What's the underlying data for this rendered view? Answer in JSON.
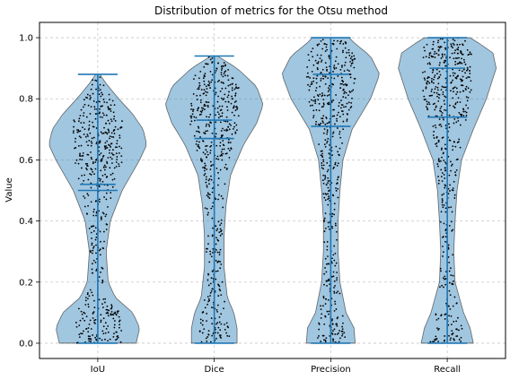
{
  "chart_data": {
    "type": "violin",
    "title": "Distribution of metrics for the Otsu method",
    "xlabel": "",
    "ylabel": "Value",
    "categories": [
      "IoU",
      "Dice",
      "Precision",
      "Recall"
    ],
    "ylim": [
      -0.05,
      1.05
    ],
    "yticks": [
      "0.0",
      "0.2",
      "0.4",
      "0.6",
      "0.8",
      "1.0"
    ],
    "grid": true,
    "colors": {
      "violin": "#1f77b4",
      "stats": "#1f77b4",
      "points": "#000000"
    },
    "series": [
      {
        "category": "IoU",
        "min": 0.0,
        "max": 0.88,
        "mean": 0.5,
        "median": 0.52,
        "density": [
          [
            0.0,
            0.55
          ],
          [
            0.05,
            0.6
          ],
          [
            0.1,
            0.5
          ],
          [
            0.15,
            0.25
          ],
          [
            0.2,
            0.15
          ],
          [
            0.3,
            0.12
          ],
          [
            0.4,
            0.18
          ],
          [
            0.5,
            0.35
          ],
          [
            0.6,
            0.6
          ],
          [
            0.65,
            0.7
          ],
          [
            0.7,
            0.65
          ],
          [
            0.75,
            0.5
          ],
          [
            0.8,
            0.3
          ],
          [
            0.85,
            0.12
          ],
          [
            0.88,
            0.03
          ]
        ]
      },
      {
        "category": "Dice",
        "min": 0.0,
        "max": 0.94,
        "mean": 0.67,
        "median": 0.73,
        "density": [
          [
            0.0,
            0.35
          ],
          [
            0.05,
            0.35
          ],
          [
            0.1,
            0.3
          ],
          [
            0.15,
            0.2
          ],
          [
            0.25,
            0.15
          ],
          [
            0.35,
            0.15
          ],
          [
            0.45,
            0.18
          ],
          [
            0.55,
            0.25
          ],
          [
            0.65,
            0.45
          ],
          [
            0.72,
            0.65
          ],
          [
            0.78,
            0.75
          ],
          [
            0.84,
            0.65
          ],
          [
            0.9,
            0.35
          ],
          [
            0.94,
            0.05
          ]
        ]
      },
      {
        "category": "Precision",
        "min": 0.0,
        "max": 1.0,
        "mean": 0.71,
        "median": 0.88,
        "density": [
          [
            0.0,
            0.4
          ],
          [
            0.05,
            0.38
          ],
          [
            0.1,
            0.25
          ],
          [
            0.2,
            0.15
          ],
          [
            0.3,
            0.12
          ],
          [
            0.4,
            0.12
          ],
          [
            0.5,
            0.15
          ],
          [
            0.6,
            0.2
          ],
          [
            0.7,
            0.35
          ],
          [
            0.8,
            0.65
          ],
          [
            0.88,
            0.8
          ],
          [
            0.94,
            0.65
          ],
          [
            0.98,
            0.4
          ],
          [
            1.0,
            0.3
          ]
        ]
      },
      {
        "category": "Recall",
        "min": 0.0,
        "max": 1.0,
        "mean": 0.74,
        "median": 0.9,
        "density": [
          [
            0.0,
            0.4
          ],
          [
            0.05,
            0.35
          ],
          [
            0.1,
            0.25
          ],
          [
            0.2,
            0.12
          ],
          [
            0.3,
            0.1
          ],
          [
            0.4,
            0.12
          ],
          [
            0.5,
            0.15
          ],
          [
            0.6,
            0.22
          ],
          [
            0.7,
            0.4
          ],
          [
            0.8,
            0.6
          ],
          [
            0.9,
            0.75
          ],
          [
            0.95,
            0.7
          ],
          [
            0.98,
            0.5
          ],
          [
            1.0,
            0.35
          ]
        ]
      }
    ]
  }
}
